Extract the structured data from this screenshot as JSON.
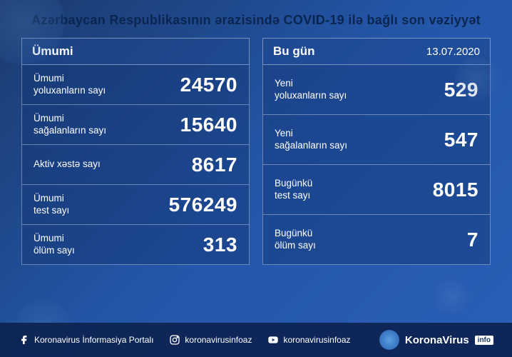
{
  "title": "Azərbaycan Respublikasının ərazisində COVID-19 ilə bağlı son vəziyyət",
  "date": "13.07.2020",
  "colors": {
    "bg_gradient_start": "#1a3a6e",
    "bg_gradient_end": "#2a5fb8",
    "panel_bg": "rgba(20,55,120,0.5)",
    "header_bg": "rgba(30,70,140,0.55)",
    "border": "rgba(255,255,255,0.35)",
    "text": "#ffffff",
    "title_color": "#0a2550",
    "footer_bg": "rgba(12,35,80,0.92)"
  },
  "panels": {
    "total": {
      "header": "Ümumi",
      "rows": [
        {
          "label": "Ümumi\nyoluxanların sayı",
          "value": "24570"
        },
        {
          "label": "Ümumi\nsağalanların sayı",
          "value": "15640"
        },
        {
          "label": "Aktiv xəstə sayı",
          "value": "8617"
        },
        {
          "label": "Ümumi\ntest sayı",
          "value": "576249"
        },
        {
          "label": "Ümumi\nölüm sayı",
          "value": "313"
        }
      ]
    },
    "today": {
      "header": "Bu gün",
      "rows": [
        {
          "label": "Yeni\nyoluxanların sayı",
          "value": "529"
        },
        {
          "label": "Yeni\nsağalanların sayı",
          "value": "547"
        },
        {
          "label": "Bugünkü\ntest sayı",
          "value": "8015"
        },
        {
          "label": "Bugünkü\nölüm sayı",
          "value": "7"
        }
      ]
    }
  },
  "footer": {
    "facebook": "Koronavirus İnformasiya Portalı",
    "instagram": "koronavirusinfoaz",
    "youtube": "koronavirusinfoaz",
    "brand_main": "KoronaVirus",
    "brand_suffix": "info"
  }
}
